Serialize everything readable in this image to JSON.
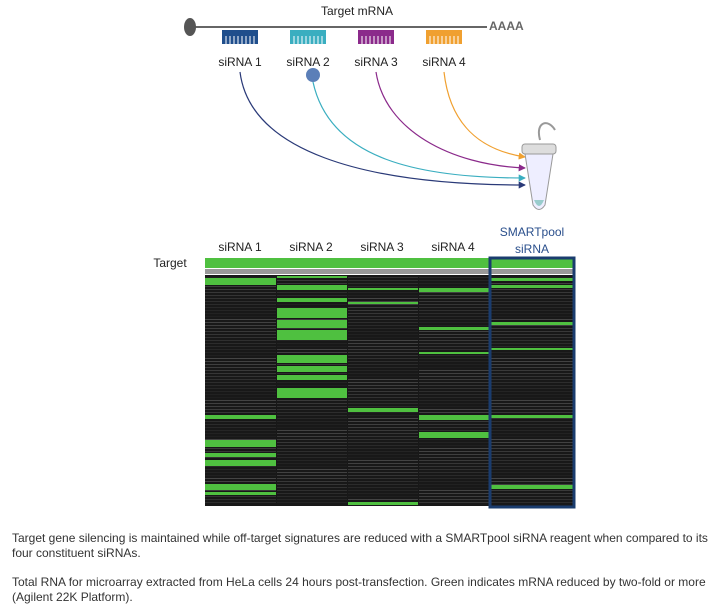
{
  "diagram": {
    "transcript_label": "Target mRNA",
    "poly_a": "AAAA",
    "sirnas": [
      "siRNA 1",
      "siRNA 2",
      "siRNA 3",
      "siRNA 4"
    ]
  },
  "heatmap": {
    "row_label": "Target",
    "columns": [
      "siRNA 1",
      "siRNA 2",
      "siRNA 3",
      "siRNA 4"
    ],
    "pool_label": [
      "SMARTpool",
      "siRNA"
    ]
  },
  "caption": [
    "Target gene silencing is maintained while off-target signatures are reduced with a SMARTpool siRNA reagent when compared to its four constituent siRNAs.",
    "Total RNA for microarray extracted from HeLa cells 24 hours post-transfection. Green indicates mRNA reduced by two-fold or more (Agilent 22K Platform)."
  ]
}
